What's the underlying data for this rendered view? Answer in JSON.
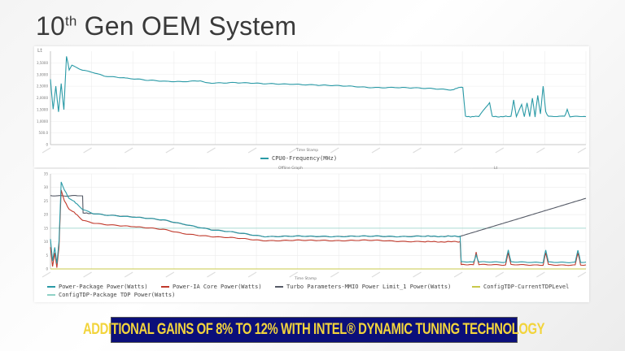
{
  "slide": {
    "title_main": "10",
    "title_sup": "th",
    "title_rest": " Gen OEM System",
    "banner": "ADDITIONAL GAINS OF 8% TO 12%  WITH INTEL® DYNAMIC TUNING TECHNOLOGY",
    "banner_colors": {
      "background": "#0b0f7a",
      "text": "#f2d43c"
    }
  },
  "chart_data": [
    {
      "type": "line",
      "title": "",
      "xlabel": "Time Stamp",
      "ylabel": "",
      "corner_label": "Lt",
      "ylim": [
        0,
        4000
      ],
      "yticks": [
        "0",
        "500.0",
        "1,0000",
        "1,5000",
        "2,0000",
        "2,5000",
        "3,0000",
        "3,5000"
      ],
      "grid": true,
      "legend": "bottom",
      "series": [
        {
          "name": "CPU0-Frequency(MHz)",
          "color": "#2a9aa6",
          "x": [
            0,
            0.5,
            1,
            1.5,
            2,
            2.5,
            3,
            3.5,
            4,
            6,
            8,
            10,
            14,
            18,
            22,
            25,
            28,
            29,
            35,
            40,
            45,
            50,
            55,
            60,
            65,
            70,
            75,
            76.5,
            77,
            77.5,
            80,
            82,
            82.5,
            86,
            86.5,
            87,
            88,
            88.5,
            89,
            89.5,
            90,
            90.5,
            91,
            91.5,
            92,
            92.5,
            93,
            96,
            96.5,
            97,
            100
          ],
          "values": [
            2800,
            1500,
            2500,
            1400,
            2600,
            1500,
            3800,
            3200,
            3400,
            3200,
            3100,
            2950,
            2850,
            2750,
            2700,
            2700,
            2750,
            2650,
            2650,
            2600,
            2600,
            2550,
            2500,
            2450,
            2450,
            2400,
            2350,
            2450,
            2450,
            1200,
            1200,
            1800,
            1200,
            1200,
            1900,
            1200,
            1700,
            1200,
            1800,
            1200,
            2000,
            1200,
            2100,
            1300,
            2500,
            1400,
            1200,
            1200,
            1500,
            1200,
            1200
          ]
        }
      ]
    },
    {
      "type": "line",
      "title": "Offline Graph",
      "xlabel": "Time Stamp",
      "ylabel": "",
      "corner_label": "Lt",
      "ylim": [
        0,
        35
      ],
      "yticks": [
        "0",
        "5",
        "10",
        "15",
        "20",
        "25",
        "30",
        "35"
      ],
      "grid": true,
      "legend": "bottom",
      "series": [
        {
          "name": "Power-Package Power(Watts)",
          "color": "#2a9aa6",
          "x": [
            0,
            0.4,
            0.8,
            1.2,
            1.6,
            2,
            2.6,
            3.5,
            5,
            6,
            8,
            10,
            13,
            16,
            21,
            25,
            30,
            40,
            50,
            60,
            70,
            76.5,
            76.7,
            79,
            79.5,
            80,
            85,
            85.5,
            86,
            92,
            92.5,
            93,
            98,
            98.5,
            99,
            100
          ],
          "values": [
            11,
            3,
            8,
            2,
            10,
            32,
            29,
            26,
            24,
            22,
            20.5,
            20,
            19.5,
            19,
            18,
            16.5,
            14.5,
            12,
            12,
            12,
            12,
            12,
            2.5,
            2.5,
            5,
            2.5,
            2.5,
            7,
            2.5,
            2.5,
            7,
            2.5,
            2.5,
            7,
            2.5,
            2.5
          ]
        },
        {
          "name": "Power-IA Core Power(Watts)",
          "color": "#c0392b",
          "x": [
            0,
            0.4,
            0.8,
            1.2,
            1.6,
            2,
            2.6,
            3.5,
            5,
            6,
            8,
            10,
            13,
            16,
            21,
            25,
            30,
            40,
            50,
            60,
            70,
            76.5,
            76.7,
            79,
            79.5,
            80,
            85,
            85.5,
            86,
            92,
            92.5,
            93,
            98,
            98.5,
            99,
            100
          ],
          "values": [
            8,
            1,
            6,
            0.5,
            8,
            29,
            25,
            22,
            20,
            18,
            17,
            16.5,
            16,
            15.5,
            14.5,
            13,
            12,
            10.5,
            10.5,
            10.5,
            10,
            10,
            1.5,
            1.5,
            6,
            1.5,
            1.5,
            6,
            1.5,
            1.5,
            6,
            1.5,
            1.5,
            6,
            1.5,
            1.5
          ]
        },
        {
          "name": "Turbo Parameters-MMIO Power Limit_1 Power(Watts)",
          "color": "#555a66",
          "x": [
            0,
            6,
            6.1,
            8,
            10,
            13,
            16,
            21,
            25,
            30,
            40,
            50,
            60,
            70,
            76.5,
            100
          ],
          "values": [
            27,
            27,
            20.5,
            20.5,
            20,
            19.5,
            19,
            18,
            16.5,
            14.5,
            12,
            12,
            12,
            12,
            12,
            26
          ]
        },
        {
          "name": "ConfigTDP-CurrentTDPLevel",
          "color": "#c8c84a",
          "x": [
            0,
            100
          ],
          "values": [
            0,
            0
          ]
        },
        {
          "name": "ConfigTDP-Package TDP Power(Watts)",
          "color": "#8fd1c6",
          "x": [
            0,
            100
          ],
          "values": [
            15,
            15
          ]
        }
      ]
    }
  ]
}
